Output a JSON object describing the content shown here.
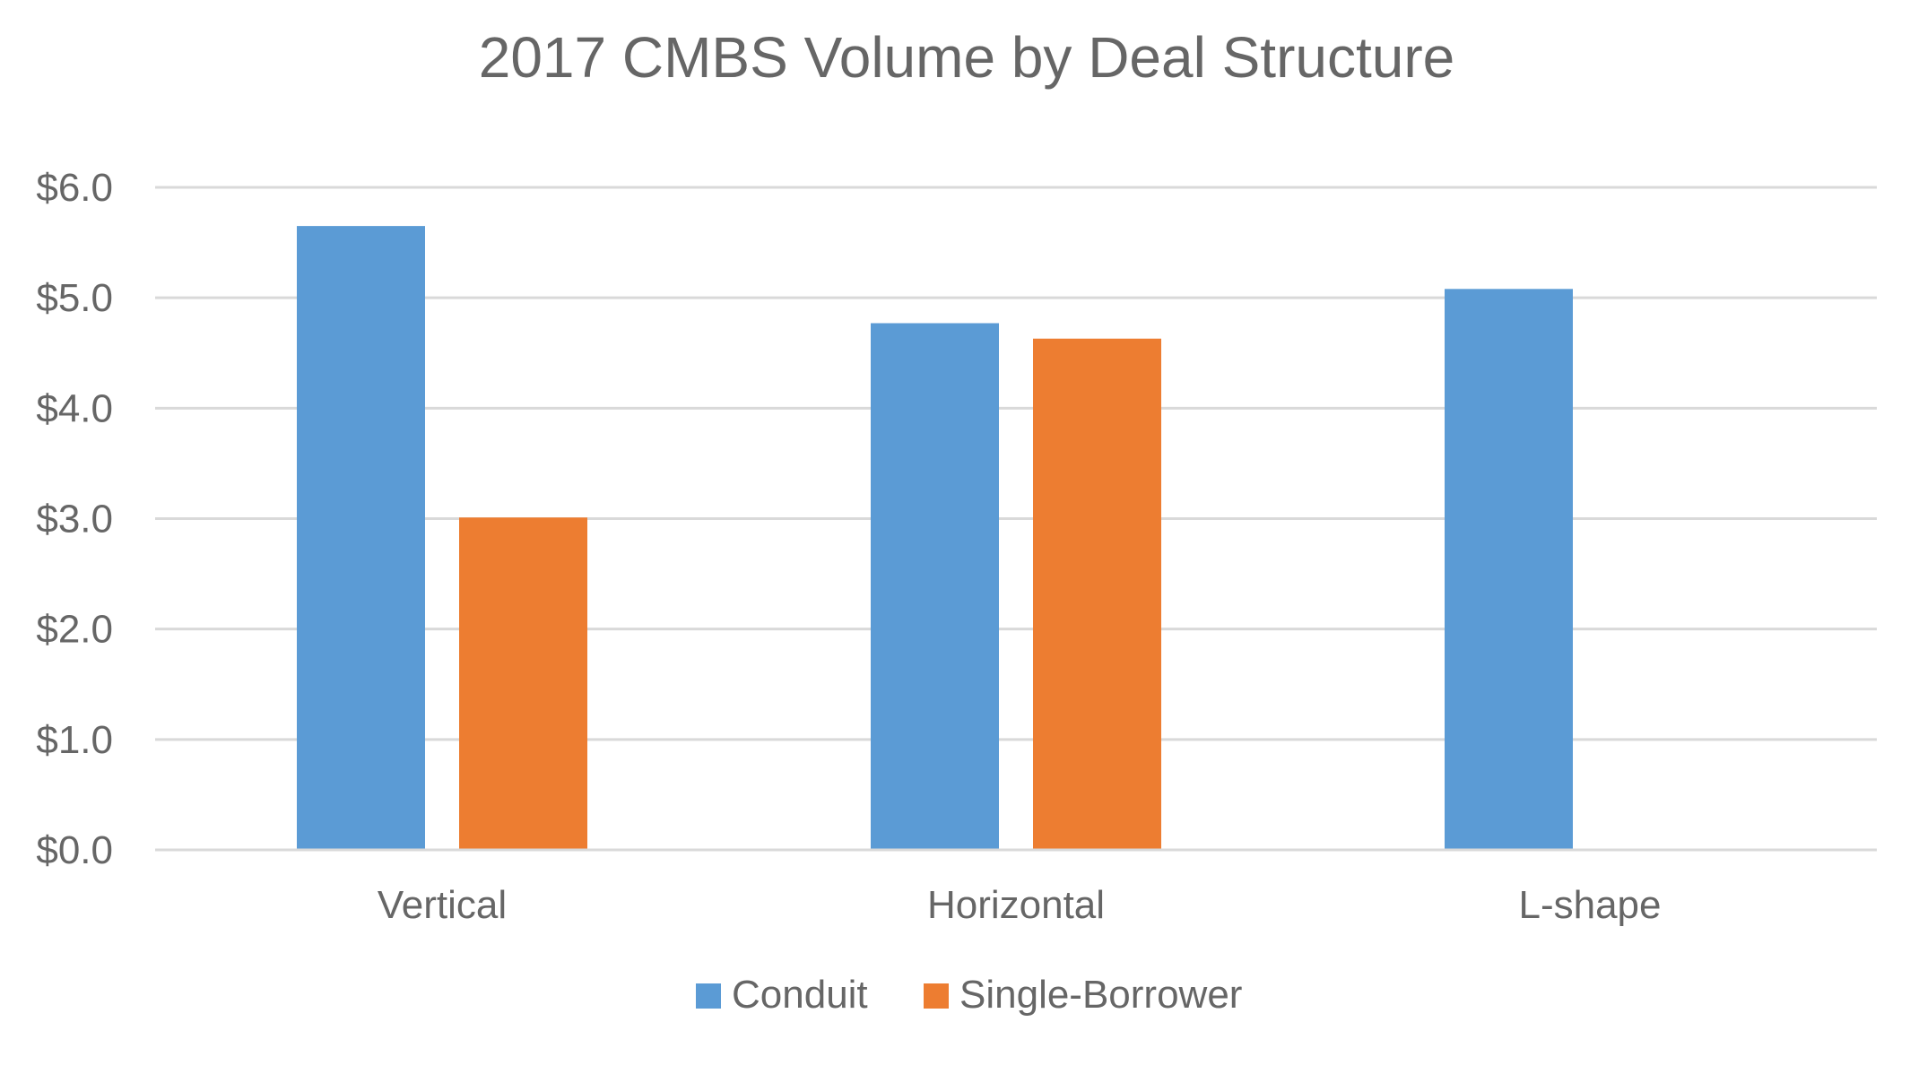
{
  "chart_data": {
    "type": "bar",
    "title": "2017 CMBS Volume by Deal Structure",
    "xlabel": "",
    "ylabel": "",
    "categories": [
      "Vertical",
      "Horizontal",
      "L-shape"
    ],
    "series": [
      {
        "name": "Conduit",
        "values": [
          5.65,
          4.77,
          5.08
        ],
        "color": "#5B9BD5"
      },
      {
        "name": "Single-Borrower",
        "values": [
          3.01,
          4.63,
          null
        ],
        "color": "#ED7D31"
      }
    ],
    "ylim": [
      0,
      6
    ],
    "yticks": [
      0,
      1,
      2,
      3,
      4,
      5,
      6
    ],
    "ytick_labels": [
      "$0.0",
      "$1.0",
      "$2.0",
      "$3.0",
      "$4.0",
      "$5.0",
      "$6.0"
    ],
    "grid": true,
    "legend": "bottom-center",
    "colors": {
      "text": "#666666",
      "grid": "#D9D9D9",
      "background": "#FFFFFF"
    }
  }
}
